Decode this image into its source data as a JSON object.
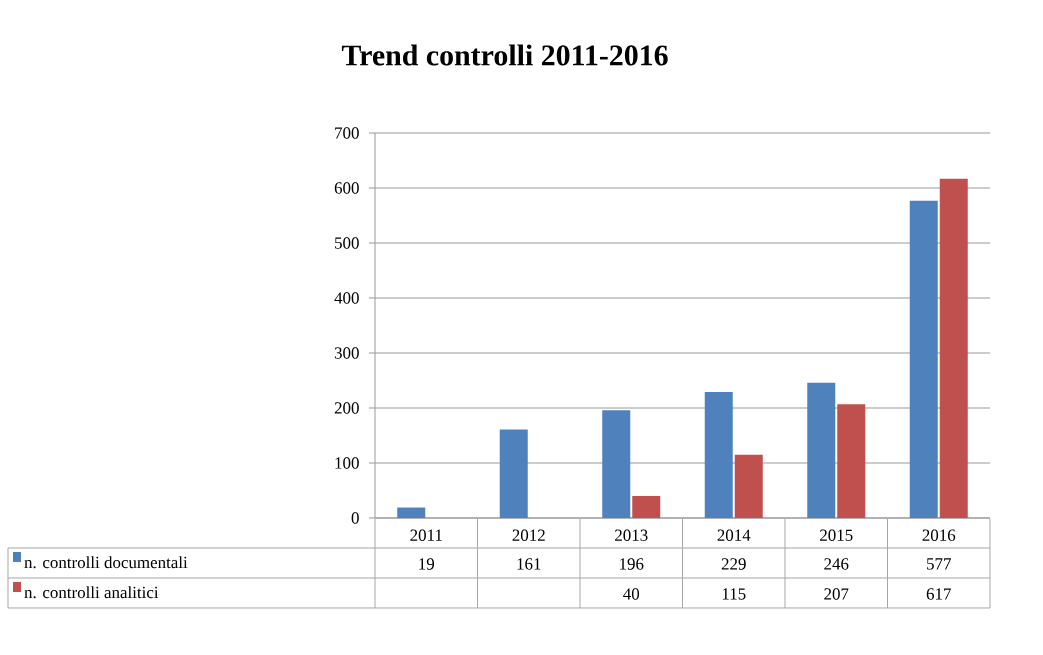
{
  "chart_data": {
    "type": "bar",
    "title": "Trend controlli 2011-2016",
    "categories": [
      "2011",
      "2012",
      "2013",
      "2014",
      "2015",
      "2016"
    ],
    "series": [
      {
        "name": "n. controlli documentali",
        "color": "#4f81bd",
        "values": [
          19,
          161,
          196,
          229,
          246,
          577
        ]
      },
      {
        "name": "n. controlli analitici",
        "color": "#c0504d",
        "values": [
          null,
          null,
          40,
          115,
          207,
          617
        ]
      }
    ],
    "ylim": [
      0,
      700
    ],
    "yticks": [
      0,
      100,
      200,
      300,
      400,
      500,
      600,
      700
    ],
    "grid": "y",
    "legend": "bottom",
    "data_labels": true
  }
}
